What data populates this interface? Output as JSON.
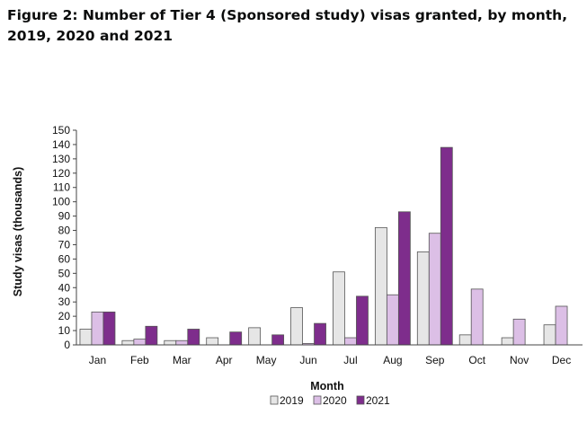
{
  "figure_title": "Figure 2: Number of Tier 4 (Sponsored study) visas granted, by month, 2019, 2020 and 2021",
  "colors": {
    "2019": "#e6e6e6",
    "2020": "#dcbfe6",
    "2021": "#7e2d8c",
    "bar_border": "#555555"
  },
  "chart_data": {
    "type": "bar",
    "title": "",
    "xlabel": "Month",
    "ylabel": "Study visas (thousands)",
    "ylim": [
      0,
      150
    ],
    "y_ticks": [
      0,
      10,
      20,
      30,
      40,
      50,
      60,
      70,
      80,
      90,
      100,
      110,
      120,
      130,
      140,
      150
    ],
    "grid": false,
    "legend_position": "bottom",
    "categories": [
      "Jan",
      "Feb",
      "Mar",
      "Apr",
      "May",
      "Jun",
      "Jul",
      "Aug",
      "Sep",
      "Oct",
      "Nov",
      "Dec"
    ],
    "series": [
      {
        "name": "2019",
        "values": [
          11,
          3,
          3,
          5,
          12,
          26,
          51,
          82,
          65,
          7,
          5,
          14
        ]
      },
      {
        "name": "2020",
        "values": [
          23,
          4,
          3,
          0,
          0,
          1,
          5,
          35,
          78,
          39,
          18,
          27
        ]
      },
      {
        "name": "2021",
        "values": [
          23,
          13,
          11,
          9,
          7,
          15,
          34,
          93,
          138,
          null,
          null,
          null
        ]
      }
    ]
  }
}
